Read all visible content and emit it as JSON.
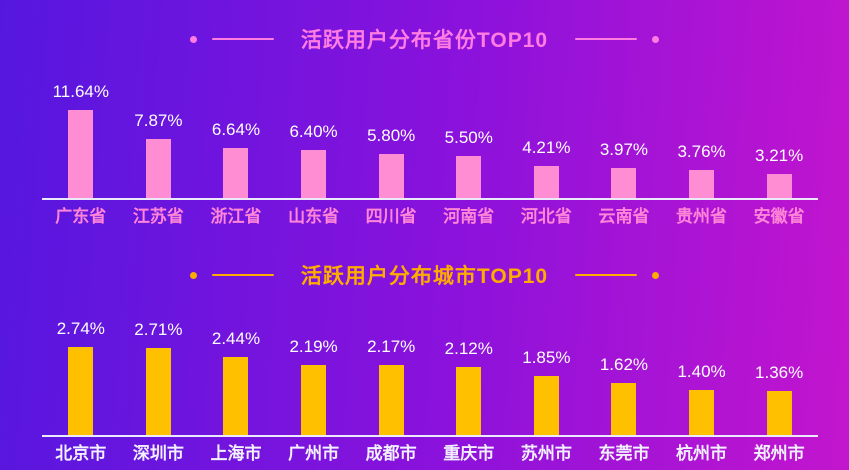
{
  "background": {
    "gradient_left": "#5517DF",
    "gradient_right": "#C315CE",
    "axis_line_color": "#EDE9FC"
  },
  "chart_data": [
    {
      "type": "bar",
      "title": "活跃用户分布省份TOP10",
      "categories": [
        "广东省",
        "江苏省",
        "浙江省",
        "山东省",
        "四川省",
        "河南省",
        "河北省",
        "云南省",
        "贵州省",
        "安徽省"
      ],
      "values": [
        11.64,
        7.87,
        6.64,
        6.4,
        5.8,
        5.5,
        4.21,
        3.97,
        3.76,
        3.21
      ],
      "value_labels": [
        "11.64%",
        "7.87%",
        "6.64%",
        "6.40%",
        "5.80%",
        "5.50%",
        "4.21%",
        "3.97%",
        "3.76%",
        "3.21%"
      ],
      "unit": "%",
      "ylim": [
        0,
        12
      ],
      "grid": false,
      "legend": "none",
      "colors": {
        "title": "#FF7DE3",
        "bar": "#FF8DD3",
        "category_label": "#FF85D8",
        "value_label": "#FFFFFF"
      }
    },
    {
      "type": "bar",
      "title": "活跃用户分布城市TOP10",
      "categories": [
        "北京市",
        "深圳市",
        "上海市",
        "广州市",
        "成都市",
        "重庆市",
        "苏州市",
        "东莞市",
        "杭州市",
        "郑州市"
      ],
      "values": [
        2.74,
        2.71,
        2.44,
        2.19,
        2.17,
        2.12,
        1.85,
        1.62,
        1.4,
        1.36
      ],
      "value_labels": [
        "2.74%",
        "2.71%",
        "2.44%",
        "2.19%",
        "2.17%",
        "2.12%",
        "1.85%",
        "1.62%",
        "1.40%",
        "1.36%"
      ],
      "unit": "%",
      "ylim": [
        0,
        3
      ],
      "grid": false,
      "legend": "none",
      "colors": {
        "title": "#FFAC00",
        "bar": "#FFC000",
        "category_label": "#F2EFFF",
        "value_label": "#FFFFFF"
      }
    }
  ]
}
